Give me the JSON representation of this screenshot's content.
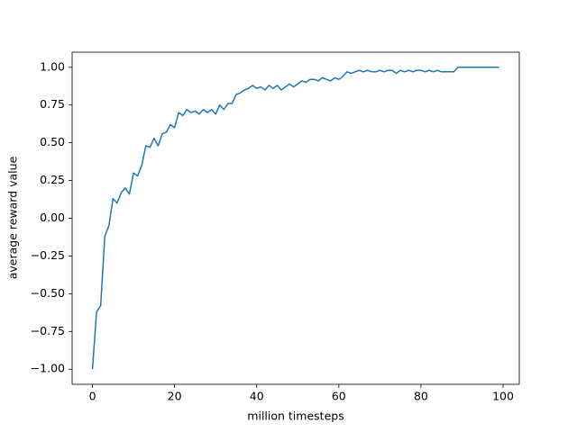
{
  "chart_data": {
    "type": "line",
    "xlabel": "million timesteps",
    "ylabel": "average reward value",
    "x": [
      0,
      1,
      2,
      3,
      4,
      5,
      6,
      7,
      8,
      9,
      10,
      11,
      12,
      13,
      14,
      15,
      16,
      17,
      18,
      19,
      20,
      21,
      22,
      23,
      24,
      25,
      26,
      27,
      28,
      29,
      30,
      31,
      32,
      33,
      34,
      35,
      36,
      37,
      38,
      39,
      40,
      41,
      42,
      43,
      44,
      45,
      46,
      47,
      48,
      49,
      50,
      51,
      52,
      53,
      54,
      55,
      56,
      57,
      58,
      59,
      60,
      61,
      62,
      63,
      64,
      65,
      66,
      67,
      68,
      69,
      70,
      71,
      72,
      73,
      74,
      75,
      76,
      77,
      78,
      79,
      80,
      81,
      82,
      83,
      84,
      85,
      86,
      87,
      88,
      89,
      90,
      91,
      92,
      93,
      94,
      95,
      96,
      97,
      98,
      99
    ],
    "values": [
      -1.0,
      -0.62,
      -0.58,
      -0.12,
      -0.05,
      0.13,
      0.1,
      0.17,
      0.2,
      0.16,
      0.3,
      0.28,
      0.35,
      0.48,
      0.47,
      0.53,
      0.48,
      0.56,
      0.57,
      0.62,
      0.6,
      0.7,
      0.68,
      0.72,
      0.7,
      0.71,
      0.69,
      0.72,
      0.7,
      0.72,
      0.69,
      0.75,
      0.72,
      0.76,
      0.76,
      0.82,
      0.83,
      0.85,
      0.86,
      0.88,
      0.86,
      0.87,
      0.85,
      0.88,
      0.86,
      0.88,
      0.85,
      0.87,
      0.89,
      0.87,
      0.89,
      0.91,
      0.9,
      0.92,
      0.92,
      0.91,
      0.93,
      0.92,
      0.91,
      0.93,
      0.92,
      0.94,
      0.97,
      0.96,
      0.97,
      0.98,
      0.97,
      0.98,
      0.97,
      0.97,
      0.98,
      0.97,
      0.98,
      0.98,
      0.96,
      0.98,
      0.97,
      0.98,
      0.97,
      0.98,
      0.98,
      0.97,
      0.98,
      0.97,
      0.98,
      0.97,
      0.97,
      0.97,
      0.97,
      1.0,
      1.0,
      1.0,
      1.0,
      1.0,
      1.0,
      1.0,
      1.0,
      1.0,
      1.0,
      1.0
    ],
    "color": "#1f77b4",
    "xlim": [
      -4.95,
      103.95
    ],
    "xticks": [
      0,
      20,
      40,
      60,
      80,
      100
    ],
    "ylim": [
      -1.1,
      1.1
    ],
    "yticks": [
      {
        "value": -1.0,
        "label": "−1.00"
      },
      {
        "value": -0.75,
        "label": "−0.75"
      },
      {
        "value": -0.5,
        "label": "−0.50"
      },
      {
        "value": -0.25,
        "label": "−0.25"
      },
      {
        "value": 0,
        "label": "0.00"
      },
      {
        "value": 0.25,
        "label": "0.25"
      },
      {
        "value": 0.5,
        "label": "0.50"
      },
      {
        "value": 0.75,
        "label": "0.75"
      },
      {
        "value": 1.0,
        "label": "1.00"
      }
    ],
    "grid": false
  }
}
